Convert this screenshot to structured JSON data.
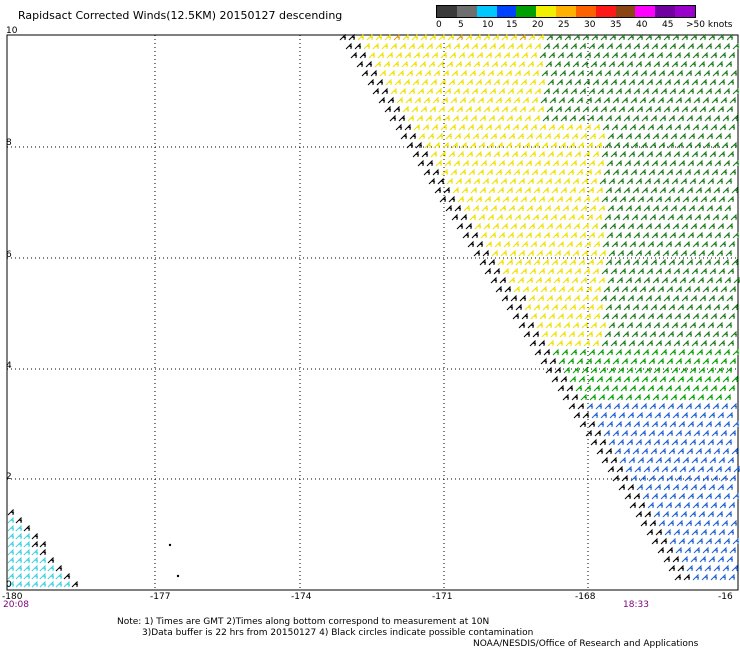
{
  "title": "Rapidsact Corrected Winds(12.5KM) 20150127 descending",
  "legend": {
    "labels": [
      "0",
      "5",
      "10",
      "15",
      "20",
      "25",
      "30",
      "35",
      "40",
      "45",
      ">50 knots"
    ],
    "colors": [
      "#3a3a3a",
      "#6e6e6e",
      "#00c8ff",
      "#0040ff",
      "#00a000",
      "#f0f000",
      "#ffb000",
      "#ff6000",
      "#ff1818",
      "#8b4513",
      "#ff00ff",
      "#7000a0",
      "#9900cc"
    ]
  },
  "axes": {
    "y_ticks": [
      "0",
      "2",
      "4",
      "6",
      "8",
      "10"
    ],
    "x_ticks": [
      "-180",
      "-177",
      "-174",
      "-171",
      "-168",
      "-16"
    ]
  },
  "times": {
    "left": "20:08",
    "right": "18:33"
  },
  "notes": [
    "Note: 1) Times are GMT 2)Times along bottom correspond to measurement at 10N",
    "3)Data buffer is 22 hrs from 20150127 4) Black circles indicate possible contamination",
    "NOAA/NESDIS/Office of Research and Applications"
  ]
}
